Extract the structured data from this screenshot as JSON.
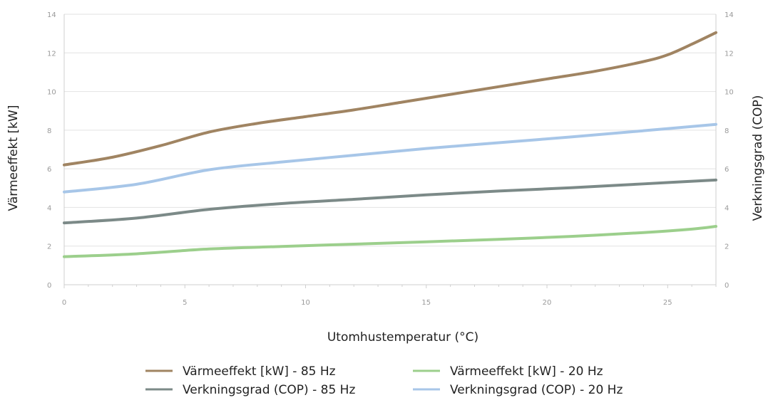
{
  "chart_data": {
    "type": "line",
    "title": "",
    "xlabel": "Utomhustemperatur (°C)",
    "ylabel_left": "Värmeeffekt [kW]",
    "ylabel_right": "Verkningsgrad (COP)",
    "xlim": [
      0,
      27
    ],
    "ylim": [
      0,
      14
    ],
    "xticks": [
      0,
      5,
      10,
      15,
      20,
      25
    ],
    "yticks": [
      0,
      2,
      4,
      6,
      8,
      10,
      12,
      14
    ],
    "grid": true,
    "legend_position": "bottom",
    "series": [
      {
        "name": "Värmeeffekt [kW] - 85 Hz",
        "color": "#a08462",
        "x": [
          0,
          2,
          4,
          6,
          8,
          10,
          12,
          14,
          16,
          18,
          20,
          22,
          24,
          25,
          26,
          27
        ],
        "y": [
          6.2,
          6.6,
          7.2,
          7.9,
          8.35,
          8.7,
          9.05,
          9.45,
          9.85,
          10.25,
          10.65,
          11.05,
          11.55,
          11.9,
          12.45,
          13.05
        ]
      },
      {
        "name": "Värmeeffekt [kW] - 20 Hz",
        "color": "#9ccf8c",
        "x": [
          0,
          3,
          6,
          9,
          12,
          15,
          18,
          21,
          24,
          26,
          27
        ],
        "y": [
          1.45,
          1.6,
          1.85,
          1.98,
          2.1,
          2.22,
          2.35,
          2.5,
          2.7,
          2.88,
          3.02
        ]
      },
      {
        "name": "Verkningsgrad (COP) - 85 Hz",
        "color": "#7c8a88",
        "x": [
          0,
          3,
          6,
          9,
          12,
          15,
          18,
          21,
          24,
          27
        ],
        "y": [
          3.2,
          3.45,
          3.9,
          4.2,
          4.42,
          4.65,
          4.85,
          5.02,
          5.22,
          5.42
        ]
      },
      {
        "name": "Verkningsgrad (COP) - 20 Hz",
        "color": "#a7c6e8",
        "x": [
          0,
          3,
          6,
          9,
          12,
          15,
          18,
          21,
          24,
          27
        ],
        "y": [
          4.8,
          5.2,
          5.95,
          6.35,
          6.7,
          7.05,
          7.35,
          7.65,
          7.97,
          8.3
        ]
      }
    ]
  }
}
